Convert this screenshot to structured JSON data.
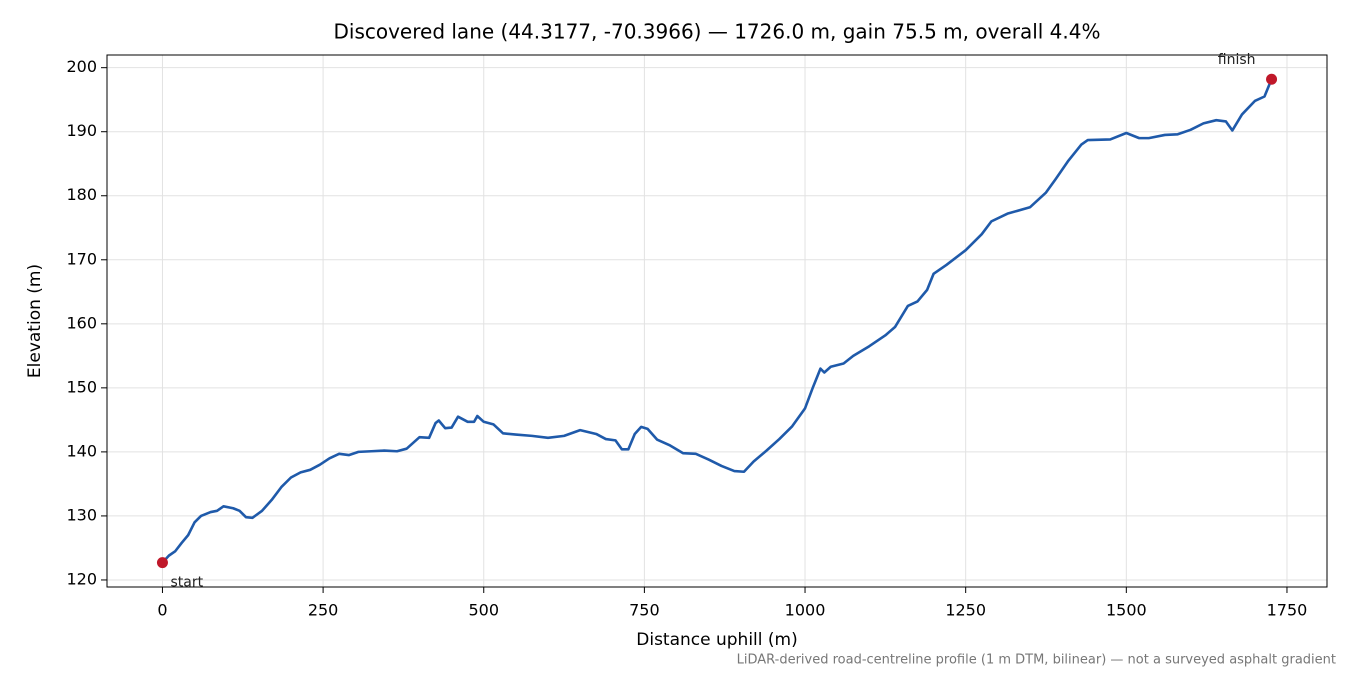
{
  "chart_data": {
    "type": "line",
    "title": "Discovered lane (44.3177, -70.3966) — 1726.0 m, gain 75.5 m, overall 4.4%",
    "xlabel": "Distance uphill (m)",
    "ylabel": "Elevation (m)",
    "footnote": "LiDAR-derived road-centreline profile (1 m DTM, bilinear) — not a surveyed asphalt gradient",
    "x": [
      0,
      10,
      20,
      30,
      40,
      50,
      60,
      75,
      85,
      95,
      110,
      120,
      130,
      140,
      155,
      170,
      185,
      200,
      215,
      230,
      245,
      260,
      275,
      290,
      305,
      325,
      345,
      365,
      380,
      400,
      415,
      425,
      430,
      440,
      450,
      460,
      475,
      485,
      490,
      500,
      515,
      530,
      550,
      575,
      600,
      625,
      650,
      675,
      690,
      705,
      715,
      725,
      735,
      745,
      755,
      770,
      790,
      810,
      830,
      850,
      870,
      890,
      905,
      920,
      940,
      960,
      980,
      1000,
      1012,
      1024,
      1030,
      1040,
      1060,
      1075,
      1100,
      1125,
      1140,
      1160,
      1175,
      1190,
      1200,
      1220,
      1250,
      1275,
      1290,
      1315,
      1350,
      1375,
      1390,
      1410,
      1430,
      1440,
      1475,
      1500,
      1520,
      1535,
      1560,
      1580,
      1600,
      1620,
      1640,
      1655,
      1665,
      1680,
      1700,
      1715,
      1726
    ],
    "series": [
      {
        "name": "Elevation",
        "color": "#1f5aaa",
        "values": [
          122.7,
          123.8,
          124.5,
          125.8,
          127,
          129,
          130,
          130.6,
          130.8,
          131.5,
          131.2,
          130.8,
          129.8,
          129.7,
          130.8,
          132.5,
          134.5,
          136,
          136.8,
          137.2,
          138,
          139,
          139.7,
          139.5,
          140,
          140.1,
          140.2,
          140.1,
          140.5,
          142.3,
          142.2,
          144.5,
          144.9,
          143.7,
          143.8,
          145.5,
          144.7,
          144.7,
          145.6,
          144.7,
          144.3,
          142.9,
          142.7,
          142.5,
          142.2,
          142.5,
          143.4,
          142.8,
          142,
          141.8,
          140.4,
          140.4,
          142.8,
          143.9,
          143.6,
          141.9,
          141,
          139.8,
          139.7,
          138.8,
          137.8,
          137,
          136.9,
          138.5,
          140.2,
          142,
          144,
          146.8,
          150,
          153,
          152.4,
          153.3,
          153.8,
          155,
          156.5,
          158.2,
          159.5,
          162.8,
          163.5,
          165.3,
          167.8,
          169.2,
          171.5,
          174,
          176,
          177.2,
          178.2,
          180.5,
          182.6,
          185.5,
          188,
          188.7,
          188.8,
          189.8,
          189,
          189,
          189.5,
          189.6,
          190.3,
          191.3,
          191.8,
          191.6,
          190.2,
          192.7,
          194.8,
          195.5,
          198.2
        ]
      }
    ],
    "annotations": [
      {
        "text": "start",
        "x": 0,
        "y": 122.7
      },
      {
        "text": "finish",
        "x": 1726,
        "y": 198.2
      }
    ],
    "marker_color": "#c0182a",
    "xlim": [
      -86.3,
      1812.3
    ],
    "ylim": [
      118.9,
      201.98
    ],
    "xticks": [
      0,
      250,
      500,
      750,
      1000,
      1250,
      1500,
      1750
    ],
    "yticks": [
      120,
      130,
      140,
      150,
      160,
      170,
      180,
      190,
      200
    ],
    "grid": true
  }
}
